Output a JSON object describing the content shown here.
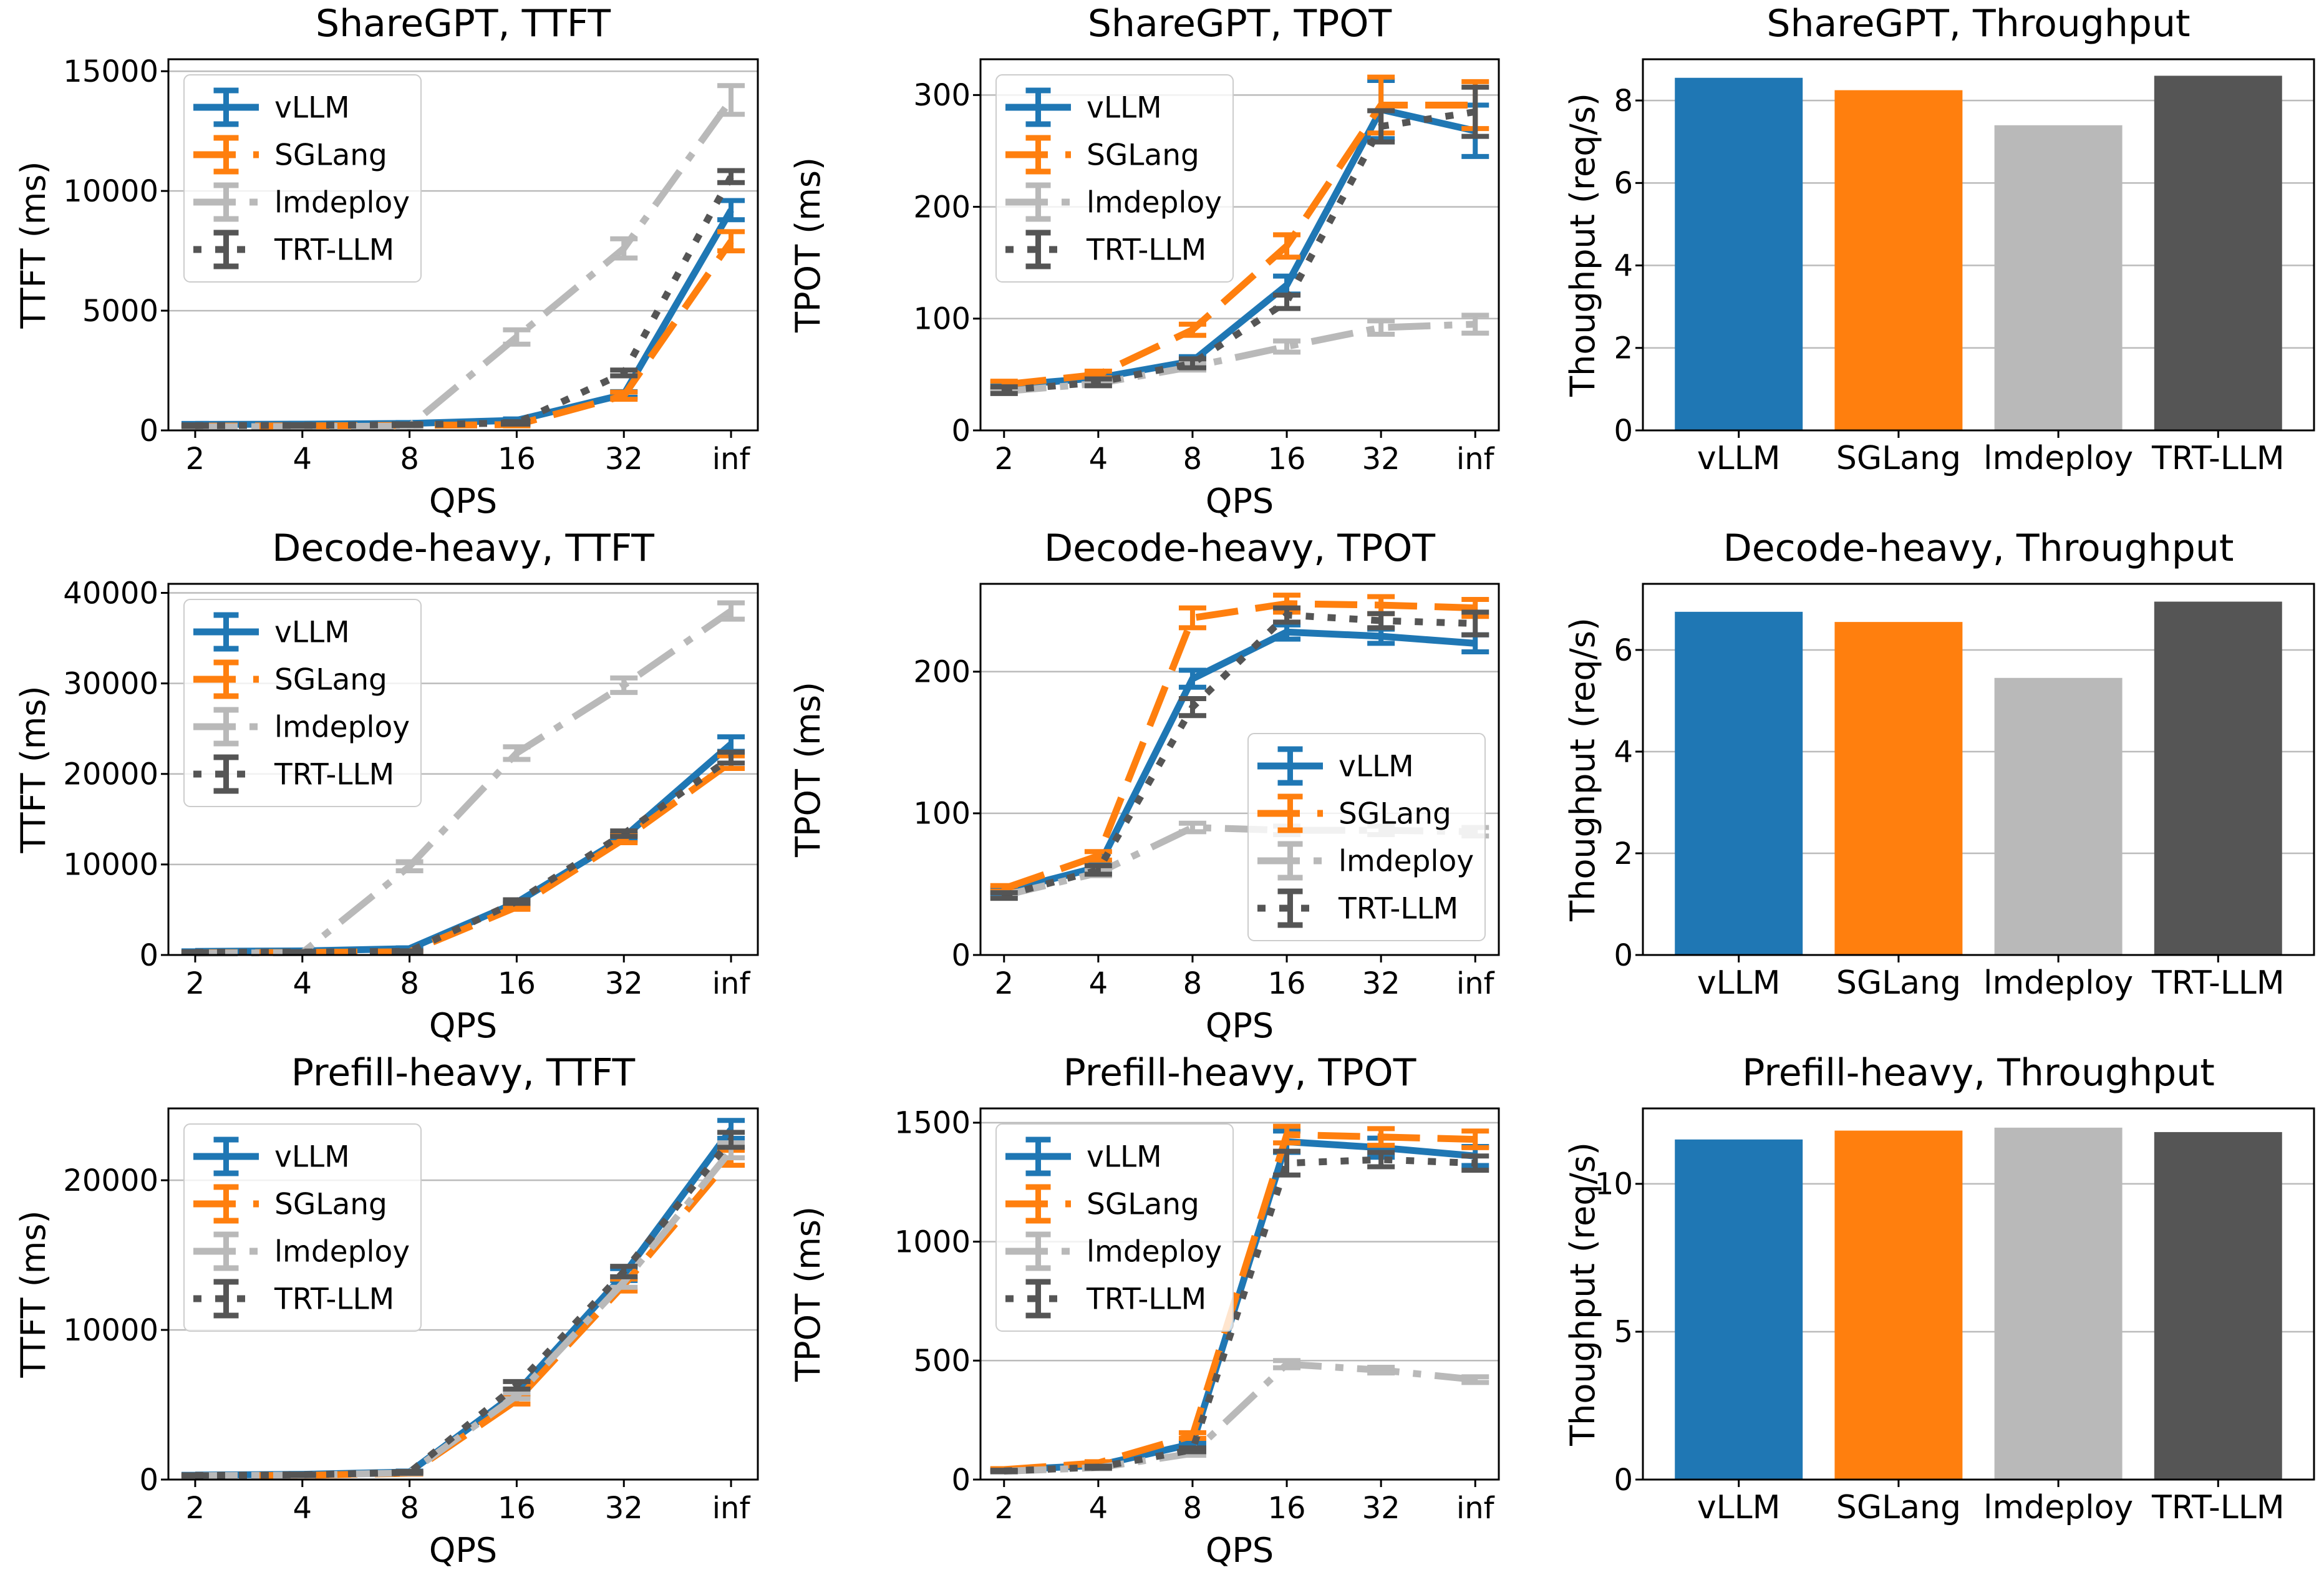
{
  "colors": {
    "vLLM": "#1f77b4",
    "SGLang": "#ff7f0e",
    "lmdeploy": "#b9b9b9",
    "TRT-LLM": "#555555",
    "grid": "#bbbbbb",
    "spine": "#000000",
    "legend_border": "#cccccc",
    "background": "#ffffff"
  },
  "frameworks": [
    "vLLM",
    "SGLang",
    "lmdeploy",
    "TRT-LLM"
  ],
  "chart_data": [
    {
      "id": "sharegpt-ttft",
      "type": "line",
      "title": "ShareGPT, TTFT",
      "xlabel": "QPS",
      "ylabel": "TTFT (ms)",
      "x": [
        "2",
        "4",
        "8",
        "16",
        "32",
        "inf"
      ],
      "yticks": [
        0,
        5000,
        10000,
        15000
      ],
      "ylim": [
        0,
        15500
      ],
      "grid": true,
      "legend_position": "upper-left",
      "series": [
        {
          "name": "vLLM",
          "style": "solid",
          "values": [
            250,
            260,
            290,
            420,
            1500,
            9200
          ],
          "err": [
            40,
            40,
            40,
            60,
            120,
            400
          ]
        },
        {
          "name": "SGLang",
          "style": "dashed",
          "values": [
            180,
            190,
            210,
            240,
            1450,
            7900
          ],
          "err": [
            30,
            30,
            30,
            50,
            150,
            400
          ]
        },
        {
          "name": "lmdeploy",
          "style": "dashdot",
          "values": [
            150,
            160,
            180,
            3900,
            7600,
            13800
          ],
          "err": [
            20,
            20,
            30,
            300,
            400,
            600
          ]
        },
        {
          "name": "TRT-LLM",
          "style": "dotted",
          "values": [
            200,
            210,
            240,
            310,
            2400,
            10600
          ],
          "err": [
            30,
            30,
            30,
            50,
            120,
            250
          ]
        }
      ]
    },
    {
      "id": "sharegpt-tpot",
      "type": "line",
      "title": "ShareGPT, TPOT",
      "xlabel": "QPS",
      "ylabel": "TPOT (ms)",
      "x": [
        "2",
        "4",
        "8",
        "16",
        "32",
        "inf"
      ],
      "yticks": [
        0,
        100,
        200,
        300
      ],
      "ylim": [
        0,
        332
      ],
      "grid": true,
      "legend_position": "upper-left",
      "series": [
        {
          "name": "vLLM",
          "style": "solid",
          "values": [
            40,
            47,
            62,
            130,
            287,
            268
          ],
          "err": [
            3,
            3,
            4,
            8,
            26,
            23
          ]
        },
        {
          "name": "SGLang",
          "style": "dashed",
          "values": [
            41,
            50,
            90,
            165,
            291,
            291
          ],
          "err": [
            3,
            3,
            5,
            10,
            25,
            21
          ]
        },
        {
          "name": "lmdeploy",
          "style": "dashdot",
          "values": [
            35,
            42,
            57,
            75,
            92,
            95
          ],
          "err": [
            2,
            2,
            3,
            5,
            6,
            8
          ]
        },
        {
          "name": "TRT-LLM",
          "style": "dotted",
          "values": [
            36,
            43,
            60,
            115,
            272,
            285
          ],
          "err": [
            3,
            3,
            4,
            6,
            14,
            22
          ]
        }
      ]
    },
    {
      "id": "sharegpt-throughput",
      "type": "bar",
      "title": "ShareGPT, Throughput",
      "xlabel": "",
      "ylabel": "Thoughput (req/s)",
      "categories": [
        "vLLM",
        "SGLang",
        "lmdeploy",
        "TRT-LLM"
      ],
      "values": [
        8.55,
        8.25,
        7.4,
        8.6
      ],
      "yticks": [
        0,
        2,
        4,
        6,
        8
      ],
      "ylim": [
        0,
        9.0
      ],
      "grid": true,
      "legend_position": "none"
    },
    {
      "id": "decode-heavy-ttft",
      "type": "line",
      "title": "Decode-heavy, TTFT",
      "xlabel": "QPS",
      "ylabel": "TTFT (ms)",
      "x": [
        "2",
        "4",
        "8",
        "16",
        "32",
        "inf"
      ],
      "yticks": [
        0,
        10000,
        20000,
        30000,
        40000
      ],
      "ylim": [
        0,
        41000
      ],
      "grid": true,
      "legend_position": "upper-left",
      "series": [
        {
          "name": "vLLM",
          "style": "solid",
          "values": [
            400,
            450,
            700,
            5800,
            13000,
            23300
          ],
          "err": [
            60,
            60,
            80,
            200,
            300,
            800
          ]
        },
        {
          "name": "SGLang",
          "style": "dashed",
          "values": [
            250,
            280,
            350,
            5300,
            12800,
            21300
          ],
          "err": [
            40,
            40,
            60,
            250,
            400,
            700
          ]
        },
        {
          "name": "lmdeploy",
          "style": "dashdot",
          "values": [
            200,
            250,
            9800,
            22300,
            29800,
            38000
          ],
          "err": [
            30,
            40,
            500,
            700,
            800,
            900
          ]
        },
        {
          "name": "TRT-LLM",
          "style": "dotted",
          "values": [
            300,
            330,
            400,
            5900,
            13400,
            21800
          ],
          "err": [
            50,
            50,
            60,
            200,
            300,
            600
          ]
        }
      ]
    },
    {
      "id": "decode-heavy-tpot",
      "type": "line",
      "title": "Decode-heavy, TPOT",
      "xlabel": "QPS",
      "ylabel": "TPOT (ms)",
      "x": [
        "2",
        "4",
        "8",
        "16",
        "32",
        "inf"
      ],
      "yticks": [
        0,
        100,
        200
      ],
      "ylim": [
        0,
        262
      ],
      "grid": true,
      "legend_position": "lower-right",
      "series": [
        {
          "name": "vLLM",
          "style": "solid",
          "values": [
            45,
            62,
            195,
            228,
            225,
            220
          ],
          "err": [
            2,
            3,
            6,
            5,
            5,
            6
          ]
        },
        {
          "name": "SGLang",
          "style": "dashed",
          "values": [
            47,
            70,
            238,
            248,
            247,
            245
          ],
          "err": [
            2,
            3,
            7,
            6,
            6,
            6
          ]
        },
        {
          "name": "lmdeploy",
          "style": "dashdot",
          "values": [
            42,
            58,
            90,
            88,
            88,
            87
          ],
          "err": [
            2,
            2,
            3,
            3,
            3,
            3
          ]
        },
        {
          "name": "TRT-LLM",
          "style": "dotted",
          "values": [
            42,
            60,
            175,
            240,
            236,
            234
          ],
          "err": [
            2,
            3,
            6,
            5,
            5,
            8
          ]
        }
      ]
    },
    {
      "id": "decode-heavy-throughput",
      "type": "bar",
      "title": "Decode-heavy, Throughput",
      "xlabel": "",
      "ylabel": "Thoughput (req/s)",
      "categories": [
        "vLLM",
        "SGLang",
        "lmdeploy",
        "TRT-LLM"
      ],
      "values": [
        6.75,
        6.55,
        5.45,
        6.95
      ],
      "yticks": [
        0,
        2,
        4,
        6
      ],
      "ylim": [
        0,
        7.3
      ],
      "grid": true,
      "legend_position": "none"
    },
    {
      "id": "prefill-heavy-ttft",
      "type": "line",
      "title": "Prefill-heavy, TTFT",
      "xlabel": "QPS",
      "ylabel": "TTFT (ms)",
      "x": [
        "2",
        "4",
        "8",
        "16",
        "32",
        "inf"
      ],
      "yticks": [
        0,
        10000,
        20000
      ],
      "ylim": [
        0,
        24800
      ],
      "grid": true,
      "legend_position": "upper-left",
      "series": [
        {
          "name": "vLLM",
          "style": "solid",
          "values": [
            300,
            350,
            500,
            5800,
            13700,
            23400
          ],
          "err": [
            50,
            50,
            70,
            200,
            400,
            600
          ]
        },
        {
          "name": "SGLang",
          "style": "dashed",
          "values": [
            250,
            280,
            420,
            5300,
            13000,
            21500
          ],
          "err": [
            40,
            40,
            60,
            250,
            400,
            500
          ]
        },
        {
          "name": "lmdeploy",
          "style": "dashdot",
          "values": [
            260,
            300,
            450,
            5600,
            13200,
            22000
          ],
          "err": [
            40,
            40,
            60,
            200,
            350,
            500
          ]
        },
        {
          "name": "TRT-LLM",
          "style": "dotted",
          "values": [
            280,
            320,
            480,
            6300,
            13900,
            22700
          ],
          "err": [
            40,
            50,
            60,
            250,
            350,
            500
          ]
        }
      ]
    },
    {
      "id": "prefill-heavy-tpot",
      "type": "line",
      "title": "Prefill-heavy, TPOT",
      "xlabel": "QPS",
      "ylabel": "TPOT (ms)",
      "x": [
        "2",
        "4",
        "8",
        "16",
        "32",
        "inf"
      ],
      "yticks": [
        0,
        500,
        1000,
        1500
      ],
      "ylim": [
        0,
        1560
      ],
      "grid": true,
      "legend_position": "upper-left",
      "series": [
        {
          "name": "vLLM",
          "style": "solid",
          "values": [
            40,
            60,
            150,
            1420,
            1395,
            1360
          ],
          "err": [
            4,
            5,
            10,
            45,
            40,
            40
          ]
        },
        {
          "name": "SGLang",
          "style": "dashed",
          "values": [
            42,
            70,
            185,
            1450,
            1440,
            1430
          ],
          "err": [
            4,
            5,
            12,
            35,
            35,
            35
          ]
        },
        {
          "name": "lmdeploy",
          "style": "dashdot",
          "values": [
            35,
            50,
            110,
            485,
            460,
            420
          ],
          "err": [
            3,
            4,
            8,
            15,
            12,
            12
          ]
        },
        {
          "name": "TRT-LLM",
          "style": "dotted",
          "values": [
            36,
            52,
            125,
            1330,
            1345,
            1330
          ],
          "err": [
            3,
            4,
            8,
            50,
            30,
            30
          ]
        }
      ]
    },
    {
      "id": "prefill-heavy-throughput",
      "type": "bar",
      "title": "Prefill-heavy, Throughput",
      "xlabel": "",
      "ylabel": "Thoughput (req/s)",
      "categories": [
        "vLLM",
        "SGLang",
        "lmdeploy",
        "TRT-LLM"
      ],
      "values": [
        11.5,
        11.8,
        11.9,
        11.75
      ],
      "yticks": [
        0,
        5,
        10
      ],
      "ylim": [
        0,
        12.55
      ],
      "grid": true,
      "legend_position": "none"
    }
  ]
}
